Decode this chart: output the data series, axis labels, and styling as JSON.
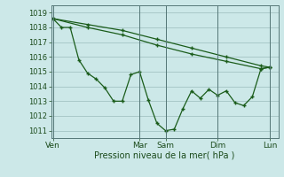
{
  "bg_color": "#cce8e8",
  "grid_color": "#9abcbc",
  "line_color": "#1a5c1a",
  "marker_color": "#1a5c1a",
  "ylim": [
    1010.5,
    1019.5
  ],
  "yticks": [
    1011,
    1012,
    1013,
    1014,
    1015,
    1016,
    1017,
    1018,
    1019
  ],
  "xlabel": "Pression niveau de la mer( hPa )",
  "day_labels": [
    "Ven",
    "Mar",
    "Sam",
    "Dim",
    "Lun"
  ],
  "day_x": [
    0,
    10,
    13,
    19,
    25
  ],
  "xlim": [
    -0.2,
    26
  ],
  "line1_x": [
    0,
    4,
    8,
    12,
    16,
    20,
    24,
    25
  ],
  "line1_y": [
    1018.6,
    1018.0,
    1017.5,
    1016.8,
    1016.2,
    1015.7,
    1015.2,
    1015.3
  ],
  "line2_x": [
    0,
    4,
    8,
    12,
    16,
    20,
    24,
    25
  ],
  "line2_y": [
    1018.6,
    1018.2,
    1017.8,
    1017.2,
    1016.6,
    1016.0,
    1015.4,
    1015.3
  ],
  "line3_x": [
    0,
    1,
    2,
    3,
    4,
    5,
    6,
    7,
    8,
    9,
    10,
    11,
    12,
    13,
    14,
    15,
    16,
    17,
    18,
    19,
    20,
    21,
    22,
    23,
    24,
    25
  ],
  "line3_y": [
    1018.6,
    1018.0,
    1018.0,
    1015.8,
    1014.9,
    1014.5,
    1013.9,
    1013.0,
    1013.0,
    1014.8,
    1015.0,
    1013.1,
    1011.5,
    1011.0,
    1011.1,
    1012.5,
    1013.7,
    1013.2,
    1013.8,
    1013.4,
    1013.7,
    1012.9,
    1012.7,
    1013.3,
    1015.2,
    1015.3
  ]
}
